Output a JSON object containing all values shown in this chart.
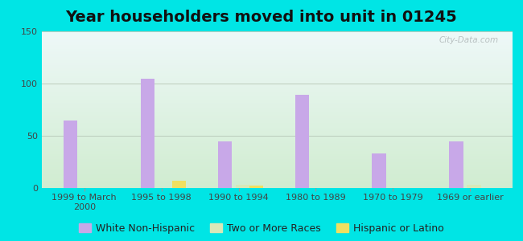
{
  "title": "Year householders moved into unit in 01245",
  "categories": [
    "1999 to March\n2000",
    "1995 to 1998",
    "1990 to 1994",
    "1980 to 1989",
    "1970 to 1979",
    "1969 or earlier"
  ],
  "series": {
    "White Non-Hispanic": [
      65,
      105,
      45,
      89,
      33,
      45
    ],
    "Two or More Races": [
      0,
      0,
      3,
      0,
      0,
      3
    ],
    "Hispanic or Latino": [
      0,
      7,
      2,
      0,
      0,
      0
    ]
  },
  "colors": {
    "White Non-Hispanic": "#c8a8e8",
    "Two or More Races": "#d8e8b8",
    "Hispanic or Latino": "#f0e060"
  },
  "ylim": [
    0,
    150
  ],
  "yticks": [
    0,
    50,
    100,
    150
  ],
  "background_outer": "#00e5e5",
  "background_inner_top": "#eef8f8",
  "background_inner_bottom": "#d0ecd0",
  "grid_color": "#bbccbb",
  "bar_width": 0.18,
  "offsets": {
    "White Non-Hispanic": -0.18,
    "Two or More Races": 0.05,
    "Hispanic or Latino": 0.23
  },
  "watermark": "City-Data.com",
  "title_fontsize": 14,
  "tick_fontsize": 8,
  "legend_fontsize": 9
}
